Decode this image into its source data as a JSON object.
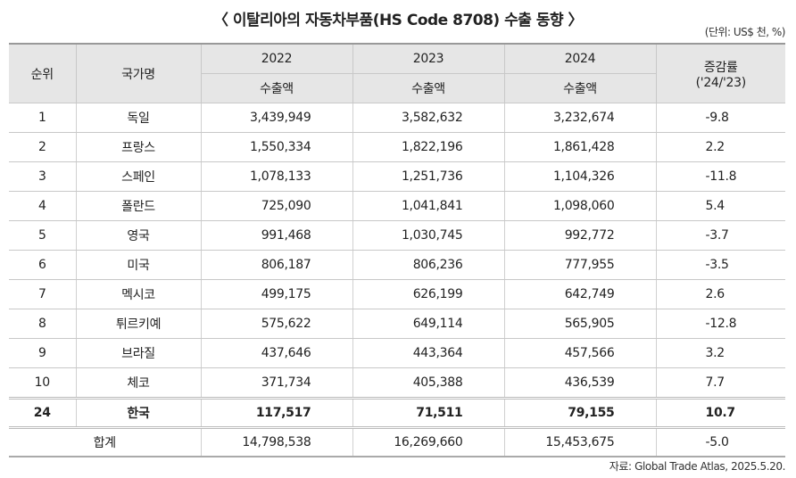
{
  "title": "〈 이탈리아의 자동차부품(HS Code 8708) 수출 동향 〉",
  "unit": "(단위: US$ 천, %)",
  "headers": {
    "rank": "순위",
    "country": "국가명",
    "y2022": "2022",
    "y2023": "2023",
    "y2024": "2024",
    "sub": "수출액",
    "rate": "증감률",
    "rate_sub": "('24/'23)"
  },
  "rows": [
    {
      "rank": "1",
      "country": "독일",
      "v2022": "3,439,949",
      "v2023": "3,582,632",
      "v2024": "3,232,674",
      "rate": "-9.8"
    },
    {
      "rank": "2",
      "country": "프랑스",
      "v2022": "1,550,334",
      "v2023": "1,822,196",
      "v2024": "1,861,428",
      "rate": "2.2"
    },
    {
      "rank": "3",
      "country": "스페인",
      "v2022": "1,078,133",
      "v2023": "1,251,736",
      "v2024": "1,104,326",
      "rate": "-11.8"
    },
    {
      "rank": "4",
      "country": "폴란드",
      "v2022": "725,090",
      "v2023": "1,041,841",
      "v2024": "1,098,060",
      "rate": "5.4"
    },
    {
      "rank": "5",
      "country": "영국",
      "v2022": "991,468",
      "v2023": "1,030,745",
      "v2024": "992,772",
      "rate": "-3.7"
    },
    {
      "rank": "6",
      "country": "미국",
      "v2022": "806,187",
      "v2023": "806,236",
      "v2024": "777,955",
      "rate": "-3.5"
    },
    {
      "rank": "7",
      "country": "멕시코",
      "v2022": "499,175",
      "v2023": "626,199",
      "v2024": "642,749",
      "rate": "2.6"
    },
    {
      "rank": "8",
      "country": "튀르키예",
      "v2022": "575,622",
      "v2023": "649,114",
      "v2024": "565,905",
      "rate": "-12.8"
    },
    {
      "rank": "9",
      "country": "브라질",
      "v2022": "437,646",
      "v2023": "443,364",
      "v2024": "457,566",
      "rate": "3.2"
    },
    {
      "rank": "10",
      "country": "체코",
      "v2022": "371,734",
      "v2023": "405,388",
      "v2024": "436,539",
      "rate": "7.7"
    }
  ],
  "korea": {
    "rank": "24",
    "country": "한국",
    "v2022": "117,517",
    "v2023": "71,511",
    "v2024": "79,155",
    "rate": "10.7"
  },
  "total": {
    "label": "합계",
    "v2022": "14,798,538",
    "v2023": "16,269,660",
    "v2024": "15,453,675",
    "rate": "-5.0"
  },
  "source": "자료: Global Trade Atlas, 2025.5.20."
}
